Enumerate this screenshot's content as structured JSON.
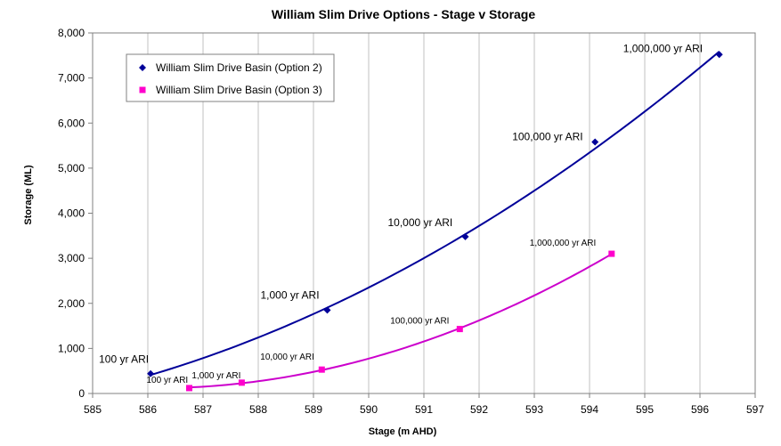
{
  "chart_data": {
    "type": "scatter",
    "title": "William  Slim Drive Options -  Stage v Storage",
    "xlabel": "Stage (m AHD)",
    "ylabel": "Storage (ML)",
    "xlim": [
      585,
      597
    ],
    "ylim": [
      0,
      8000
    ],
    "x_ticks": [
      585,
      586,
      587,
      588,
      589,
      590,
      591,
      592,
      593,
      594,
      595,
      596,
      597
    ],
    "y_ticks": [
      0,
      1000,
      2000,
      3000,
      4000,
      5000,
      6000,
      7000,
      8000
    ],
    "y_tick_labels": [
      "0",
      "1,000",
      "2,000",
      "3,000",
      "4,000",
      "5,000",
      "6,000",
      "7,000",
      "8,000"
    ],
    "grid": "vertical",
    "legend_position": "top-left",
    "series": [
      {
        "name": "William Slim Drive Basin (Option 2)",
        "color": "#000099",
        "trend_color": "#000099",
        "marker": "diamond",
        "points": [
          {
            "x": 586.05,
            "y": 440,
            "label": "100 yr ARI"
          },
          {
            "x": 589.25,
            "y": 1850,
            "label": "1,000 yr ARI"
          },
          {
            "x": 591.75,
            "y": 3480,
            "label": "10,000 yr ARI"
          },
          {
            "x": 594.1,
            "y": 5580,
            "label": "100,000 yr ARI"
          },
          {
            "x": 596.35,
            "y": 7520,
            "label": "1,000,000 yr ARI"
          }
        ]
      },
      {
        "name": "William Slim Drive Basin (Option 3)",
        "color": "#ff00cc",
        "trend_color": "#cc00cc",
        "marker": "square",
        "points": [
          {
            "x": 586.75,
            "y": 120,
            "label": "100 yr ARI"
          },
          {
            "x": 587.7,
            "y": 240,
            "label": "1,000 yr ARI"
          },
          {
            "x": 589.15,
            "y": 530,
            "label": "10,000 yr ARI"
          },
          {
            "x": 591.65,
            "y": 1430,
            "label": "100,000 yr ARI"
          },
          {
            "x": 594.4,
            "y": 3100,
            "label": "1,000,000 yr ARI"
          }
        ]
      }
    ]
  }
}
